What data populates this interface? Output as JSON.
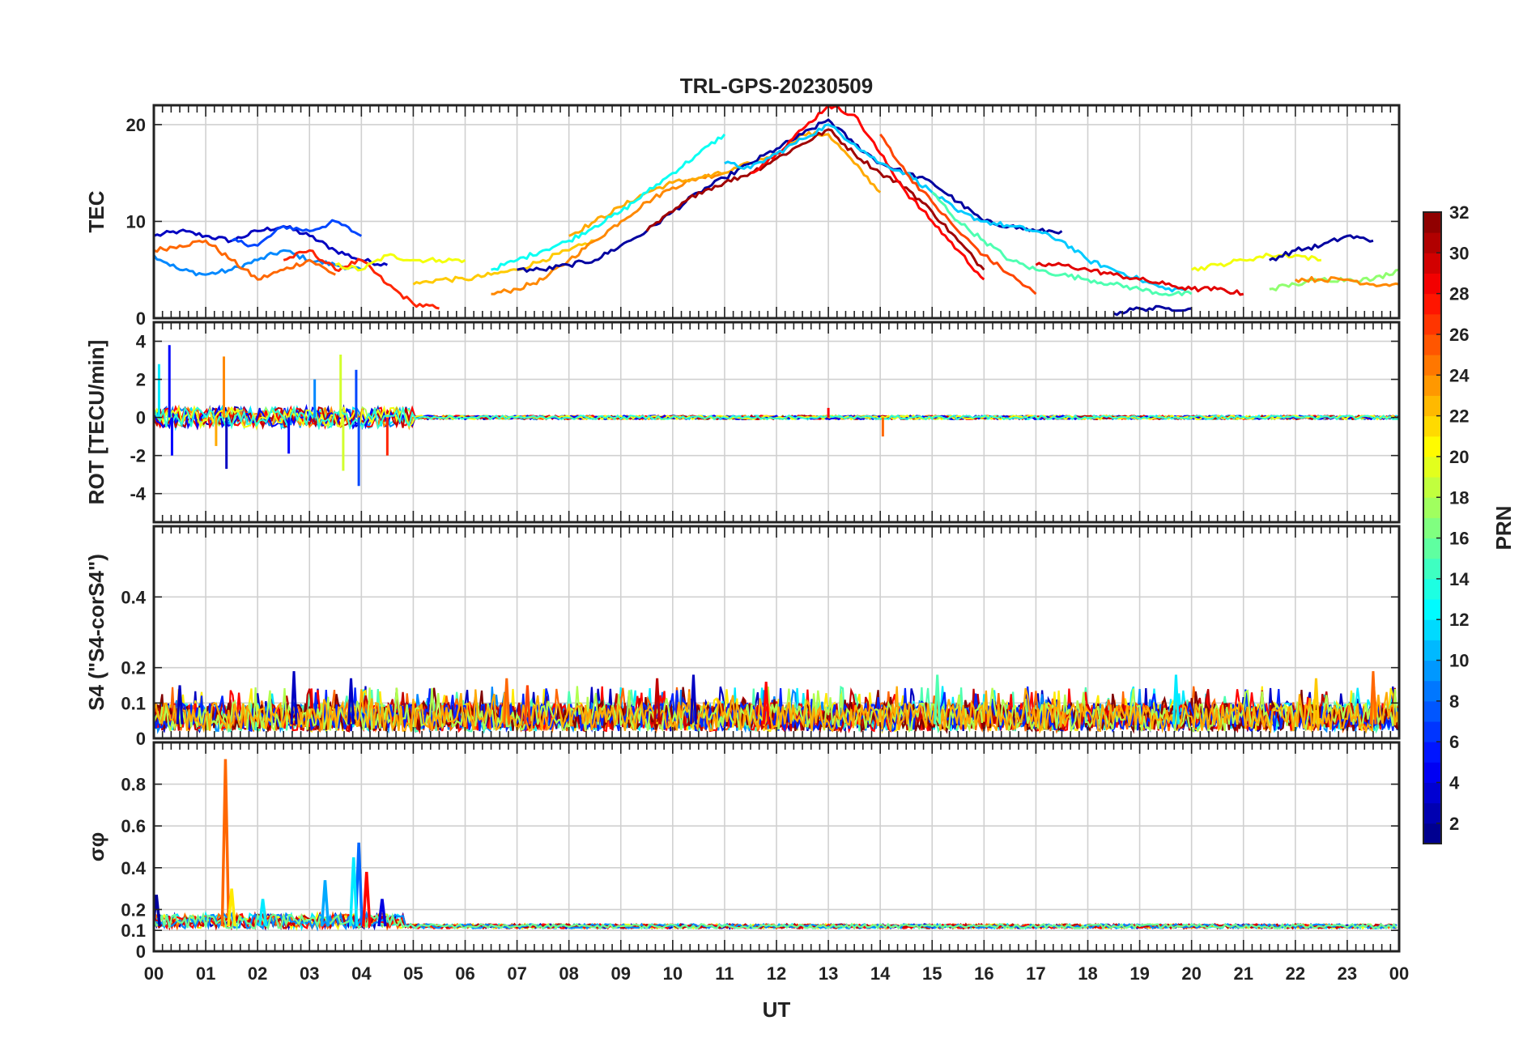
{
  "chart_data": {
    "type": "line",
    "title": "TRL-GPS-20230509",
    "xlabel": "UT",
    "x_ticks": [
      "00",
      "01",
      "02",
      "03",
      "04",
      "05",
      "06",
      "07",
      "08",
      "09",
      "10",
      "11",
      "12",
      "13",
      "14",
      "15",
      "16",
      "17",
      "18",
      "19",
      "20",
      "21",
      "22",
      "23",
      "00"
    ],
    "xlim": [
      0,
      24
    ],
    "grid": true,
    "panels": [
      {
        "id": "tec",
        "ylabel": "TEC",
        "ylim": [
          0,
          22
        ],
        "ticks": [
          0,
          10,
          20
        ],
        "tick_labels": [
          "0",
          "10",
          "20"
        ],
        "series": [
          {
            "prn": 3,
            "x": [
              0,
              0.5,
              1,
              1.5,
              2,
              2.5,
              3,
              3.5,
              4,
              4.5
            ],
            "y": [
              8.5,
              9,
              8.5,
              8,
              9,
              9.5,
              8.5,
              7,
              6,
              5.5
            ]
          },
          {
            "prn": 9,
            "x": [
              0,
              0.5,
              1,
              1.5,
              2,
              2.5,
              3,
              3.5,
              4
            ],
            "y": [
              6.5,
              5,
              4.5,
              5,
              6,
              7,
              6,
              5.5,
              5
            ]
          },
          {
            "prn": 7,
            "x": [
              1.5,
              2,
              2.5,
              3,
              3.5,
              4
            ],
            "y": [
              8,
              7.5,
              9.5,
              9,
              10,
              8.5
            ]
          },
          {
            "prn": 25,
            "x": [
              0,
              0.5,
              1,
              1.5,
              2,
              2.5,
              3,
              3.5
            ],
            "y": [
              7,
              7.5,
              8,
              6,
              4,
              5,
              6,
              4.5
            ]
          },
          {
            "prn": 27,
            "x": [
              2.5,
              3,
              3.5,
              4,
              4.5,
              5,
              5.5
            ],
            "y": [
              6,
              7,
              5,
              6,
              3.5,
              1.5,
              1
            ]
          },
          {
            "prn": 20,
            "x": [
              3.5,
              4,
              4.5,
              5,
              5.5,
              6
            ],
            "y": [
              5.5,
              5,
              6.5,
              6,
              6,
              6
            ]
          },
          {
            "prn": 22,
            "x": [
              5,
              5.5,
              6,
              6.5,
              7,
              7.5,
              8,
              8.5
            ],
            "y": [
              3.5,
              4,
              4,
              4.5,
              5,
              6,
              7,
              8
            ]
          },
          {
            "prn": 24,
            "x": [
              6.5,
              7,
              7.5,
              8,
              8.5,
              9,
              9.5,
              10,
              10.5,
              11
            ],
            "y": [
              2.5,
              3,
              4,
              6,
              8,
              10,
              12,
              13.5,
              14.5,
              15
            ]
          },
          {
            "prn": 23,
            "x": [
              8,
              8.5,
              9,
              9.5,
              10,
              10.5,
              11,
              11.5,
              12,
              12.5,
              13,
              13.5,
              14
            ],
            "y": [
              8.5,
              10,
              11.5,
              13,
              14,
              14.5,
              15,
              16,
              17,
              19,
              19,
              16,
              13
            ]
          },
          {
            "prn": 13,
            "x": [
              6.5,
              7,
              7.5,
              8,
              8.5,
              9,
              9.5,
              10,
              10.5,
              11
            ],
            "y": [
              5,
              6,
              7,
              8,
              9.5,
              11,
              13,
              15,
              17,
              19
            ]
          },
          {
            "prn": 2,
            "x": [
              7,
              7.5,
              8,
              8.5,
              9,
              9.5,
              10,
              10.5,
              11,
              11.5,
              12,
              12.5,
              13,
              13.5,
              14,
              14.5,
              15,
              15.5,
              16,
              16.5,
              17,
              17.5
            ],
            "y": [
              5,
              5,
              5.5,
              6,
              7.5,
              9,
              11,
              13,
              14.5,
              16,
              17.5,
              19,
              20.5,
              18,
              16,
              15,
              14,
              12,
              10,
              9.5,
              9,
              9
            ]
          },
          {
            "prn": 31,
            "x": [
              9.5,
              10,
              10.5,
              11,
              11.5,
              12,
              12.5,
              13,
              13.5,
              14,
              14.5,
              15,
              15.5,
              16
            ],
            "y": [
              9,
              11,
              13,
              14,
              15,
              16.5,
              18,
              19.5,
              17,
              15,
              13.5,
              11,
              8,
              5
            ]
          },
          {
            "prn": 28,
            "x": [
              11.5,
              12,
              12.5,
              13,
              13.5,
              14,
              14.5,
              15,
              15.5,
              16
            ],
            "y": [
              15,
              17,
              19.5,
              22,
              21,
              17,
              13,
              10,
              7,
              4
            ]
          },
          {
            "prn": 11,
            "x": [
              11,
              11.5,
              12,
              12.5,
              13,
              13.5,
              14,
              14.5,
              15,
              15.5,
              16,
              16.5,
              17,
              17.5,
              18,
              18.5,
              19,
              19.5,
              20
            ],
            "y": [
              16,
              15.5,
              17,
              18.5,
              20,
              18,
              16,
              15,
              13,
              11,
              10,
              9.5,
              9,
              8,
              6,
              5,
              4,
              3,
              3
            ]
          },
          {
            "prn": 26,
            "x": [
              14,
              14.5,
              15,
              15.5,
              16,
              16.5,
              17
            ],
            "y": [
              19,
              15,
              12,
              9,
              6.5,
              4.5,
              2.5
            ]
          },
          {
            "prn": 15,
            "x": [
              15,
              15.5,
              16,
              16.5,
              17,
              17.5,
              18,
              18.5,
              19,
              19.5,
              20
            ],
            "y": [
              13,
              10,
              8,
              6,
              5,
              4.5,
              4,
              3.5,
              3,
              2.5,
              2.5
            ]
          },
          {
            "prn": 29,
            "x": [
              17,
              17.5,
              18,
              18.5,
              19,
              19.5,
              20,
              20.5,
              21
            ],
            "y": [
              5.5,
              5.5,
              5,
              4.5,
              4,
              3.5,
              3,
              3,
              2.5
            ]
          },
          {
            "prn": 2,
            "x": [
              18.5,
              19,
              19.5,
              20
            ],
            "y": [
              0.5,
              1,
              1,
              1
            ]
          },
          {
            "prn": 20,
            "x": [
              20,
              20.5,
              21,
              21.5,
              22,
              22.5
            ],
            "y": [
              5,
              5.5,
              6,
              6.5,
              6.5,
              6
            ]
          },
          {
            "prn": 2,
            "x": [
              21.5,
              22,
              22.5,
              23,
              23.5
            ],
            "y": [
              6,
              7,
              7.5,
              8.5,
              8
            ]
          },
          {
            "prn": 17,
            "x": [
              21.5,
              22,
              22.5,
              23,
              23.5,
              24
            ],
            "y": [
              3,
              3.5,
              4,
              4,
              4,
              5
            ]
          },
          {
            "prn": 24,
            "x": [
              22,
              22.5,
              23,
              23.5,
              24
            ],
            "y": [
              4,
              4,
              4,
              3.5,
              3.5
            ]
          }
        ]
      },
      {
        "id": "rot",
        "ylabel": "ROT [TECU/min]",
        "ylim": [
          -5.5,
          5
        ],
        "ticks": [
          -4,
          -2,
          0,
          2,
          4
        ],
        "tick_labels": [
          "-4",
          "-2",
          "0",
          "2",
          "4"
        ],
        "spikes": [
          {
            "prn": 5,
            "x": 0.3,
            "y": 3.8
          },
          {
            "prn": 5,
            "x": 0.35,
            "y": -2
          },
          {
            "prn": 12,
            "x": 0.1,
            "y": 2.8
          },
          {
            "prn": 24,
            "x": 1.35,
            "y": 3.2
          },
          {
            "prn": 3,
            "x": 1.4,
            "y": -2.7
          },
          {
            "prn": 23,
            "x": 1.2,
            "y": -1.5
          },
          {
            "prn": 5,
            "x": 2.6,
            "y": -1.9
          },
          {
            "prn": 9,
            "x": 3.1,
            "y": 2
          },
          {
            "prn": 19,
            "x": 3.6,
            "y": 3.3
          },
          {
            "prn": 19,
            "x": 3.65,
            "y": -2.8
          },
          {
            "prn": 7,
            "x": 3.95,
            "y": -3.6
          },
          {
            "prn": 7,
            "x": 3.9,
            "y": 2.5
          },
          {
            "prn": 27,
            "x": 4.5,
            "y": -2
          },
          {
            "prn": 25,
            "x": 14.05,
            "y": -1
          },
          {
            "prn": 28,
            "x": 13,
            "y": 0.5
          }
        ]
      },
      {
        "id": "s4",
        "ylabel": "S4 (\"S4-corS4\")",
        "ylim": [
          0,
          0.6
        ],
        "ticks": [
          0,
          0.1,
          0.2,
          0.4
        ],
        "tick_labels": [
          "0",
          "0.1",
          "0.2",
          "0.4"
        ],
        "peaks": [
          {
            "prn": 3,
            "x": 0.5,
            "y": 0.15
          },
          {
            "prn": 3,
            "x": 2.7,
            "y": 0.19
          },
          {
            "prn": 3,
            "x": 3.8,
            "y": 0.17
          },
          {
            "prn": 25,
            "x": 6.8,
            "y": 0.17
          },
          {
            "prn": 26,
            "x": 7.2,
            "y": 0.15
          },
          {
            "prn": 30,
            "x": 9.7,
            "y": 0.17
          },
          {
            "prn": 3,
            "x": 10.4,
            "y": 0.18
          },
          {
            "prn": 28,
            "x": 11.8,
            "y": 0.16
          },
          {
            "prn": 15,
            "x": 15.1,
            "y": 0.18
          },
          {
            "prn": 12,
            "x": 19.7,
            "y": 0.18
          },
          {
            "prn": 25,
            "x": 23.5,
            "y": 0.19
          },
          {
            "prn": 22,
            "x": 22.4,
            "y": 0.17
          }
        ]
      },
      {
        "id": "sigma",
        "ylabel": "σφ",
        "ylim": [
          0,
          1
        ],
        "ticks": [
          0,
          0.1,
          0.2,
          0.4,
          0.6,
          0.8
        ],
        "tick_labels": [
          "0",
          "0.1",
          "0.2",
          "0.4",
          "0.6",
          "0.8"
        ],
        "peaks": [
          {
            "prn": 25,
            "x": 1.38,
            "y": 0.92
          },
          {
            "prn": 21,
            "x": 1.5,
            "y": 0.3
          },
          {
            "prn": 12,
            "x": 2.1,
            "y": 0.25
          },
          {
            "prn": 10,
            "x": 3.3,
            "y": 0.34
          },
          {
            "prn": 8,
            "x": 3.95,
            "y": 0.52
          },
          {
            "prn": 12,
            "x": 3.85,
            "y": 0.45
          },
          {
            "prn": 28,
            "x": 4.1,
            "y": 0.38
          },
          {
            "prn": 4,
            "x": 4.4,
            "y": 0.25
          },
          {
            "prn": 2,
            "x": 0.05,
            "y": 0.27
          }
        ]
      }
    ],
    "colorbar": {
      "label": "PRN",
      "range": [
        1,
        32
      ],
      "ticks": [
        2,
        4,
        6,
        8,
        10,
        12,
        14,
        16,
        18,
        20,
        22,
        24,
        26,
        28,
        30,
        32
      ],
      "tick_labels": [
        "2",
        "4",
        "6",
        "8",
        "10",
        "12",
        "14",
        "16",
        "18",
        "20",
        "22",
        "24",
        "26",
        "28",
        "30",
        "32"
      ],
      "colormap": "jet"
    }
  }
}
